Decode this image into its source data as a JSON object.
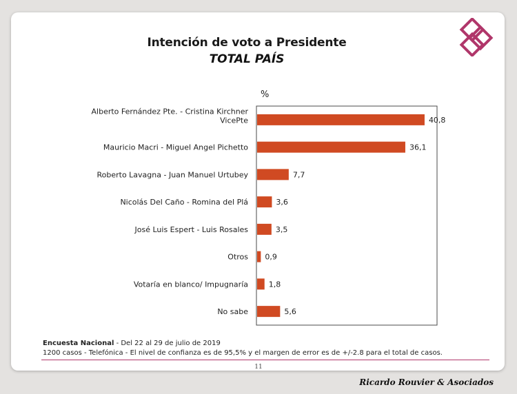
{
  "title": "Intención de voto a Presidente",
  "subtitle": "TOTAL PAÍS",
  "unit_label": "%",
  "chart_data": {
    "type": "bar",
    "orientation": "horizontal",
    "title": "Intención de voto a Presidente",
    "subtitle": "TOTAL PAÍS",
    "ylabel": "%",
    "categories": [
      [
        "Alberto Fernández Pte. - Cristina Kirchner",
        "VicePte"
      ],
      [
        "Mauricio Macri - Miguel Angel Pichetto"
      ],
      [
        "Roberto Lavagna - Juan Manuel Urtubey"
      ],
      [
        "Nicolás Del Caño - Romina del Plá"
      ],
      [
        "José Luis Espert - Luis Rosales"
      ],
      [
        "Otros"
      ],
      [
        "Votaría en blanco/ Impugnaría"
      ],
      [
        "No sabe"
      ]
    ],
    "values": [
      40.8,
      36.1,
      7.7,
      3.6,
      3.5,
      0.9,
      1.8,
      5.6
    ],
    "value_labels": [
      "40,8",
      "36,1",
      "7,7",
      "3,6",
      "3,5",
      "0,9",
      "1,8",
      "5,6"
    ],
    "xlim": [
      0,
      44
    ],
    "bar_color": "#d04a22",
    "grid": false,
    "legend": "none"
  },
  "footer": {
    "source_bold": "Encuesta Nacional",
    "source_rest": " - Del 22  al 29 de julio  de 2019",
    "methodology": "1200 casos - Telefónica  - El nivel de confianza es de 95,5% y el margen de error es de +/-2.8 para el total de casos."
  },
  "page_number": "11",
  "brand": "Ricardo Rouvier & Asociados",
  "colors": {
    "accent": "#b0366a",
    "bar": "#d04a22"
  },
  "icons": {
    "logo": "interlocked-diamond-logo-icon"
  }
}
